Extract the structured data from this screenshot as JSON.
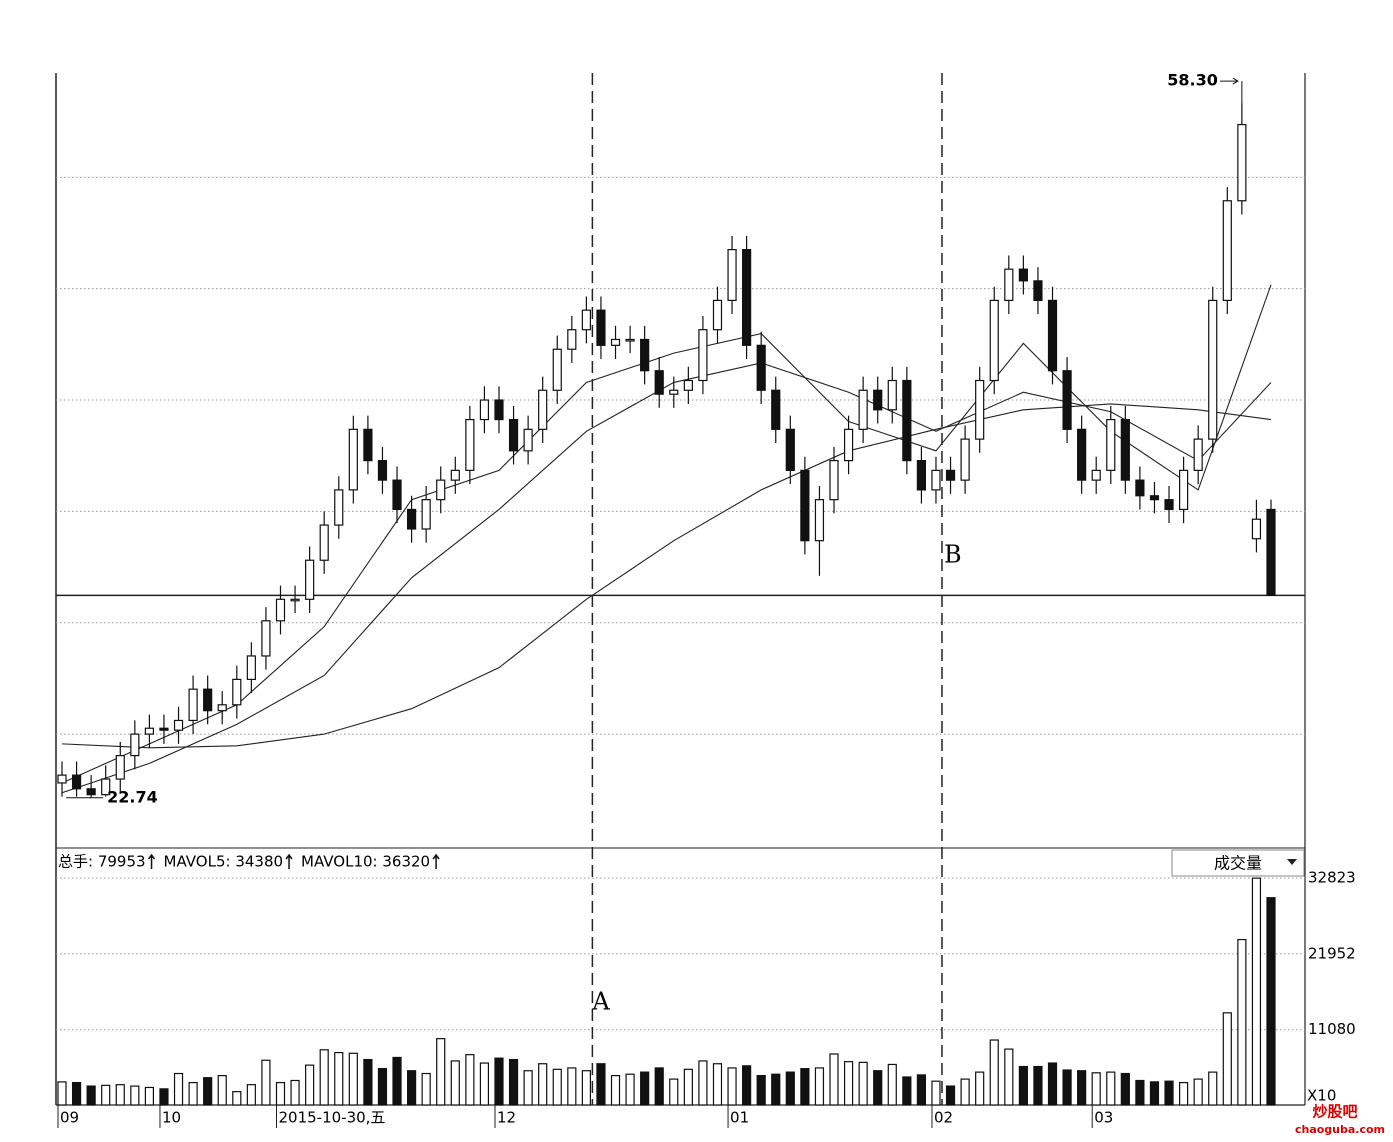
{
  "chart_data": {
    "type": "candlestick",
    "categories": [
      "09",
      null,
      null,
      null,
      null,
      null,
      null,
      "10",
      null,
      null,
      null,
      null,
      null,
      null,
      null,
      "2015-10-30,五",
      null,
      null,
      null,
      null,
      null,
      null,
      null,
      null,
      null,
      null,
      null,
      null,
      null,
      null,
      "12",
      null,
      null,
      null,
      null,
      null,
      null,
      null,
      null,
      null,
      null,
      null,
      null,
      null,
      null,
      null,
      "01",
      null,
      null,
      null,
      null,
      null,
      null,
      null,
      null,
      null,
      null,
      null,
      null,
      null,
      "02",
      null,
      null,
      null,
      null,
      null,
      null,
      null,
      null,
      null,
      null,
      "03",
      null,
      null,
      null,
      null,
      null,
      null,
      null,
      null,
      null,
      null,
      null,
      null
    ],
    "open": [
      23.5,
      23.9,
      23.2,
      22.9,
      23.7,
      24.9,
      26.0,
      26.3,
      26.2,
      26.7,
      28.3,
      27.2,
      27.5,
      28.8,
      30.0,
      31.8,
      32.9,
      32.9,
      34.9,
      36.7,
      38.5,
      41.6,
      40.0,
      39.0,
      37.5,
      36.5,
      38.0,
      39.0,
      39.5,
      42.1,
      43.1,
      42.1,
      40.5,
      41.6,
      43.6,
      45.7,
      46.7,
      47.7,
      45.9,
      46.2,
      46.2,
      44.6,
      43.4,
      43.6,
      44.1,
      46.7,
      48.2,
      50.8,
      45.9,
      43.6,
      41.6,
      39.5,
      35.9,
      38.0,
      40.0,
      41.6,
      43.6,
      42.6,
      44.1,
      40.0,
      38.5,
      39.5,
      39.0,
      41.1,
      44.1,
      48.2,
      49.8,
      49.2,
      48.2,
      44.6,
      41.6,
      39.0,
      39.5,
      42.1,
      39.0,
      38.2,
      38.0,
      37.5,
      39.5,
      41.1,
      48.2,
      53.3,
      36.0,
      37.5
    ],
    "high": [
      24.6,
      24.6,
      23.9,
      24.4,
      25.6,
      26.7,
      27.0,
      27.0,
      27.4,
      29.0,
      29.0,
      28.2,
      29.5,
      30.7,
      32.5,
      33.6,
      33.6,
      35.6,
      37.4,
      39.2,
      42.3,
      42.3,
      40.7,
      39.7,
      38.2,
      38.7,
      39.7,
      40.2,
      42.8,
      43.8,
      43.8,
      42.8,
      42.3,
      44.3,
      46.4,
      47.4,
      48.4,
      48.4,
      46.9,
      46.9,
      46.9,
      45.3,
      44.3,
      44.8,
      47.4,
      48.9,
      51.5,
      51.5,
      46.6,
      44.3,
      42.3,
      40.2,
      38.7,
      40.7,
      42.3,
      44.3,
      44.3,
      44.8,
      44.8,
      40.7,
      40.2,
      40.2,
      41.8,
      44.8,
      48.9,
      50.5,
      50.5,
      49.9,
      48.9,
      45.3,
      42.3,
      40.2,
      42.8,
      42.8,
      39.7,
      38.9,
      38.7,
      40.2,
      41.8,
      48.9,
      54.0,
      58.3,
      38.0,
      38.0
    ],
    "high_label": {
      "index": 81,
      "text": "58.30"
    },
    "low": [
      22.8,
      22.8,
      22.74,
      22.8,
      23.0,
      24.2,
      25.3,
      25.5,
      25.5,
      26.0,
      26.5,
      26.5,
      26.8,
      28.1,
      29.3,
      31.1,
      32.2,
      32.2,
      34.2,
      36.0,
      37.8,
      39.3,
      38.3,
      36.8,
      35.8,
      35.8,
      37.3,
      38.3,
      38.8,
      41.4,
      41.4,
      39.8,
      39.8,
      40.9,
      42.9,
      45.0,
      46.0,
      45.2,
      45.2,
      45.5,
      43.9,
      42.7,
      42.7,
      42.9,
      43.4,
      46.0,
      47.5,
      45.2,
      42.9,
      40.9,
      38.8,
      35.2,
      34.1,
      37.3,
      39.3,
      40.9,
      41.9,
      41.9,
      39.3,
      37.8,
      37.8,
      38.3,
      38.3,
      40.4,
      43.4,
      47.5,
      48.5,
      47.5,
      43.9,
      40.9,
      38.3,
      38.3,
      38.8,
      38.3,
      37.5,
      37.3,
      36.8,
      36.8,
      38.8,
      40.4,
      47.5,
      52.6,
      35.3,
      33.1
    ],
    "low_label": {
      "index": 2,
      "text": "22.74"
    },
    "close": [
      23.9,
      23.2,
      22.9,
      23.7,
      24.9,
      26.0,
      26.3,
      26.2,
      26.7,
      28.3,
      27.2,
      27.5,
      28.8,
      30.0,
      31.8,
      32.9,
      32.9,
      34.9,
      36.7,
      38.5,
      41.6,
      40.0,
      39.0,
      37.5,
      36.5,
      38.0,
      39.0,
      39.5,
      42.1,
      43.1,
      42.1,
      40.5,
      41.6,
      43.6,
      45.7,
      46.7,
      47.7,
      45.9,
      46.2,
      46.2,
      44.6,
      43.4,
      43.6,
      44.1,
      46.7,
      48.2,
      50.8,
      45.9,
      43.6,
      41.6,
      39.5,
      35.9,
      38.0,
      40.0,
      41.6,
      43.6,
      42.6,
      44.1,
      40.0,
      38.5,
      39.5,
      39.0,
      41.1,
      44.1,
      48.2,
      49.8,
      49.2,
      48.2,
      44.6,
      41.6,
      39.0,
      39.5,
      42.1,
      39.0,
      38.2,
      38.0,
      37.5,
      39.5,
      41.1,
      48.2,
      53.3,
      57.2,
      37.0,
      33.1
    ],
    "ma_lines": [
      {
        "index": [
          0,
          6,
          12,
          18,
          24,
          30,
          36,
          42,
          48,
          54,
          60,
          66,
          72,
          78,
          83
        ],
        "values": [
          23.5,
          25.5,
          27.5,
          31.5,
          38.0,
          39.5,
          44.0,
          45.5,
          46.5,
          42.0,
          40.5,
          46.0,
          41.5,
          38.5,
          49.0
        ]
      },
      {
        "index": [
          0,
          6,
          12,
          18,
          24,
          30,
          36,
          42,
          48,
          54,
          60,
          66,
          72,
          78,
          83
        ],
        "values": [
          23.0,
          24.5,
          26.5,
          29.0,
          34.0,
          37.5,
          41.5,
          44.0,
          45.0,
          43.5,
          41.5,
          43.5,
          42.5,
          40.0,
          44.0
        ]
      },
      {
        "index": [
          0,
          6,
          12,
          18,
          24,
          30,
          36,
          42,
          48,
          54,
          60,
          66,
          72,
          78,
          83
        ],
        "values": [
          25.5,
          25.3,
          25.4,
          26.0,
          27.3,
          29.4,
          32.9,
          35.9,
          38.5,
          40.5,
          41.6,
          42.6,
          42.9,
          42.6,
          42.1
        ]
      }
    ],
    "ylim": [
      20.17,
      59.84
    ],
    "grid_levels": [
      54.5,
      48.8,
      43.1,
      37.4,
      31.7,
      26.0
    ],
    "horizontal_line": 33.1,
    "markers": [
      {
        "label": "A",
        "index": 36
      },
      {
        "label": "B",
        "index": 60
      }
    ],
    "volume": {
      "header": [
        "总手: 79953",
        "MAVOL5: 34380",
        "MAVOL10: 36320"
      ],
      "selector": "成交量",
      "unit": "X10",
      "values": [
        3600,
        3500,
        3000,
        3100,
        3200,
        3000,
        2800,
        2600,
        4800,
        3500,
        4200,
        4500,
        2200,
        3200,
        6700,
        3500,
        3800,
        6000,
        8200,
        7800,
        7700,
        6800,
        5500,
        7100,
        5200,
        4800,
        9800,
        6600,
        7500,
        6300,
        7000,
        6800,
        5200,
        6200,
        5400,
        5600,
        5200,
        6200,
        4500,
        4700,
        5000,
        5600,
        4000,
        5400,
        6600,
        6200,
        5600,
        5900,
        4500,
        4700,
        5000,
        5500,
        5600,
        7600,
        6500,
        6400,
        5200,
        6100,
        4300,
        4600,
        3700,
        3000,
        4000,
        5000,
        9600,
        8300,
        5800,
        5800,
        6300,
        5300,
        5200,
        4900,
        5000,
        4800,
        3800,
        3600,
        3700,
        3500,
        4000,
        5000,
        13500,
        24000,
        32800,
        30000
      ],
      "ylim": [
        0,
        36550
      ],
      "yticks": [
        32823,
        21952,
        11080
      ]
    },
    "watermark": {
      "name": "炒股吧",
      "url": "chaoguba.com"
    }
  }
}
